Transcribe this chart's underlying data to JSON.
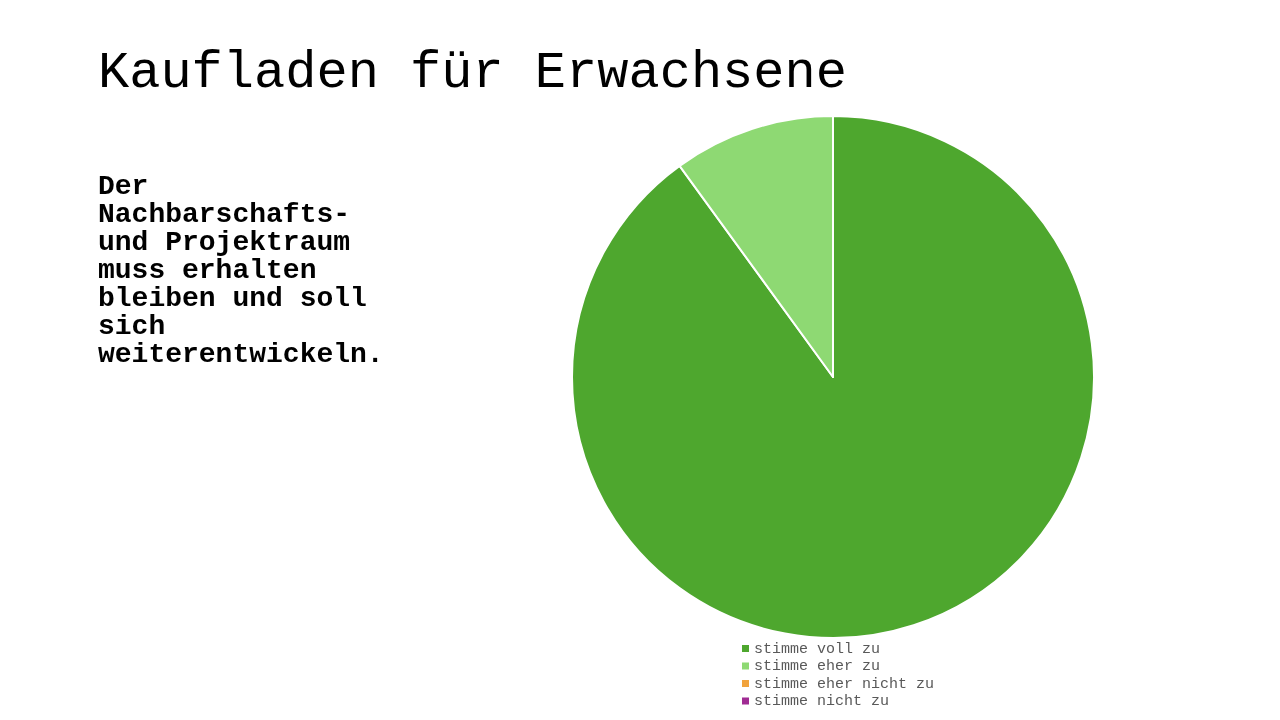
{
  "chart_data": {
    "type": "pie",
    "title": "Kaufladen für Erwachsene",
    "subtitle": "Der Nachbarschafts- und Projektraum muss erhalten bleiben und soll sich weiterentwickeln.",
    "categories": [
      "stimme voll zu",
      "stimme eher zu",
      "stimme eher nicht zu",
      "stimme nicht zu"
    ],
    "values": [
      90,
      10,
      0,
      0
    ],
    "colors": [
      "#4ea72e",
      "#8ed973",
      "#f1a33c",
      "#a02b93"
    ],
    "legend": "bottom"
  }
}
